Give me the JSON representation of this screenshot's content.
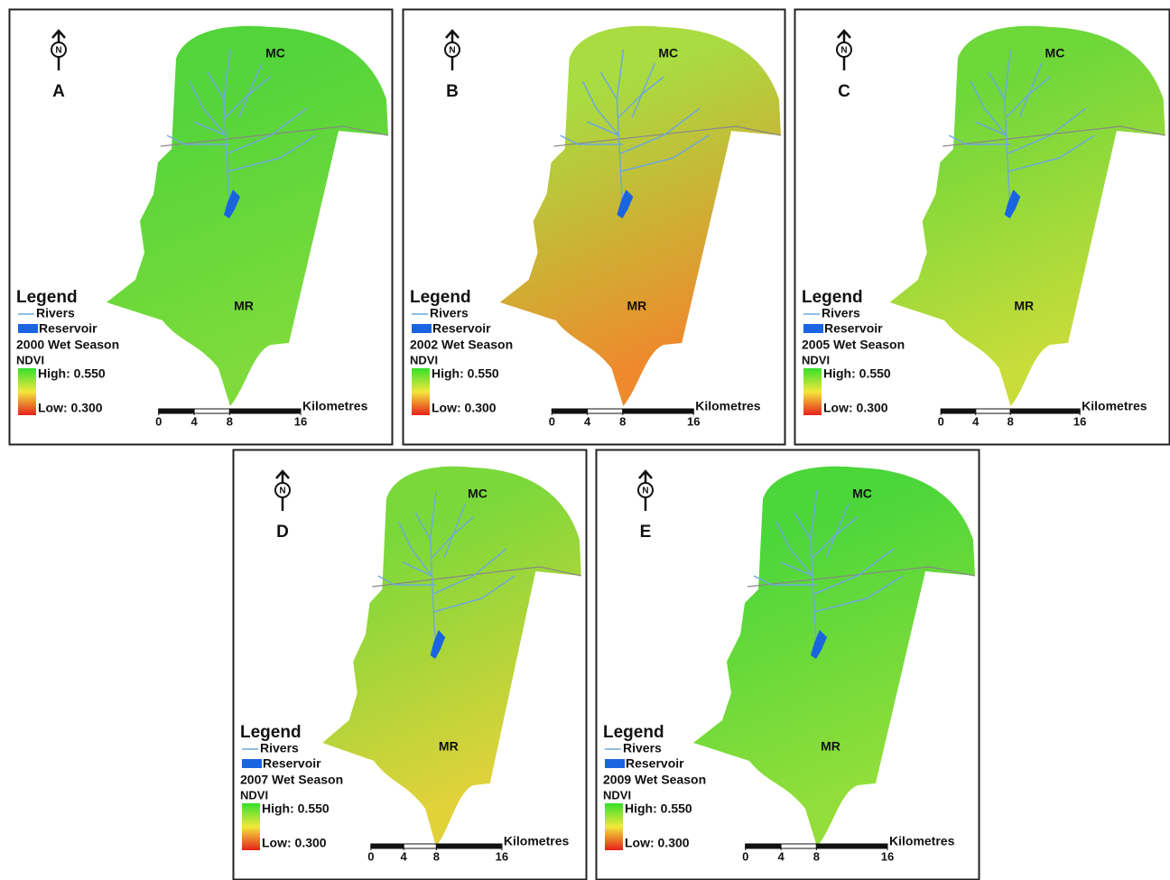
{
  "legend": {
    "title": "Legend",
    "rivers": "Rivers",
    "reservoir": "Reservoir",
    "index": "NDVI",
    "high": "High: 0.550",
    "low": "Low: 0.300"
  },
  "scale": {
    "ticks": [
      0,
      4,
      8,
      16
    ],
    "unit": "Kilometres"
  },
  "regions": {
    "north": "MC",
    "south": "MR"
  },
  "north_arrow": "N",
  "panels": [
    {
      "letter": "A",
      "season": "2000 Wet Season",
      "colors": [
        "#52d43a",
        "#7edb3b"
      ]
    },
    {
      "letter": "B",
      "season": "2002 Wet Season",
      "colors": [
        "#a8dc40",
        "#ee8a2c"
      ]
    },
    {
      "letter": "C",
      "season": "2005 Wet Season",
      "colors": [
        "#6ed73a",
        "#c8dc3a"
      ]
    },
    {
      "letter": "D",
      "season": "2007 Wet Season",
      "colors": [
        "#7ad83a",
        "#e2d23a"
      ]
    },
    {
      "letter": "E",
      "season": "2009 Wet Season",
      "colors": [
        "#4bd63a",
        "#93de3a"
      ]
    }
  ]
}
